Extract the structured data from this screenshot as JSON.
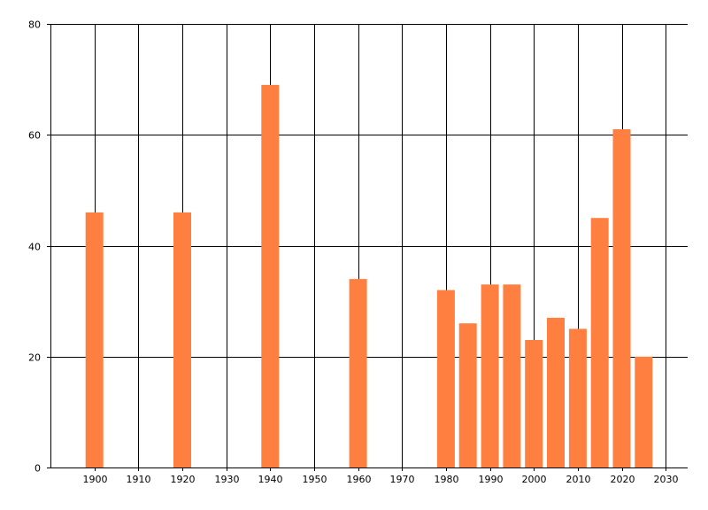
{
  "chart_data": {
    "type": "bar",
    "title": "",
    "xlabel": "",
    "ylabel": "",
    "x": [
      1900,
      1920,
      1940,
      1960,
      1980,
      1985,
      1990,
      1995,
      2000,
      2005,
      2010,
      2015,
      2020,
      2025
    ],
    "values": [
      46,
      46,
      69,
      34,
      32,
      26,
      33,
      33,
      23,
      27,
      25,
      45,
      61,
      20
    ],
    "xlim": [
      1890,
      2035
    ],
    "ylim": [
      0,
      80
    ],
    "x_ticks": [
      1900,
      1910,
      1920,
      1930,
      1940,
      1950,
      1960,
      1970,
      1980,
      1990,
      2000,
      2010,
      2020,
      2030
    ],
    "y_ticks": [
      0,
      20,
      40,
      60,
      80
    ],
    "grid": true,
    "legend": "none",
    "bar_color": "#ff7f40",
    "grid_color": "#000000"
  }
}
